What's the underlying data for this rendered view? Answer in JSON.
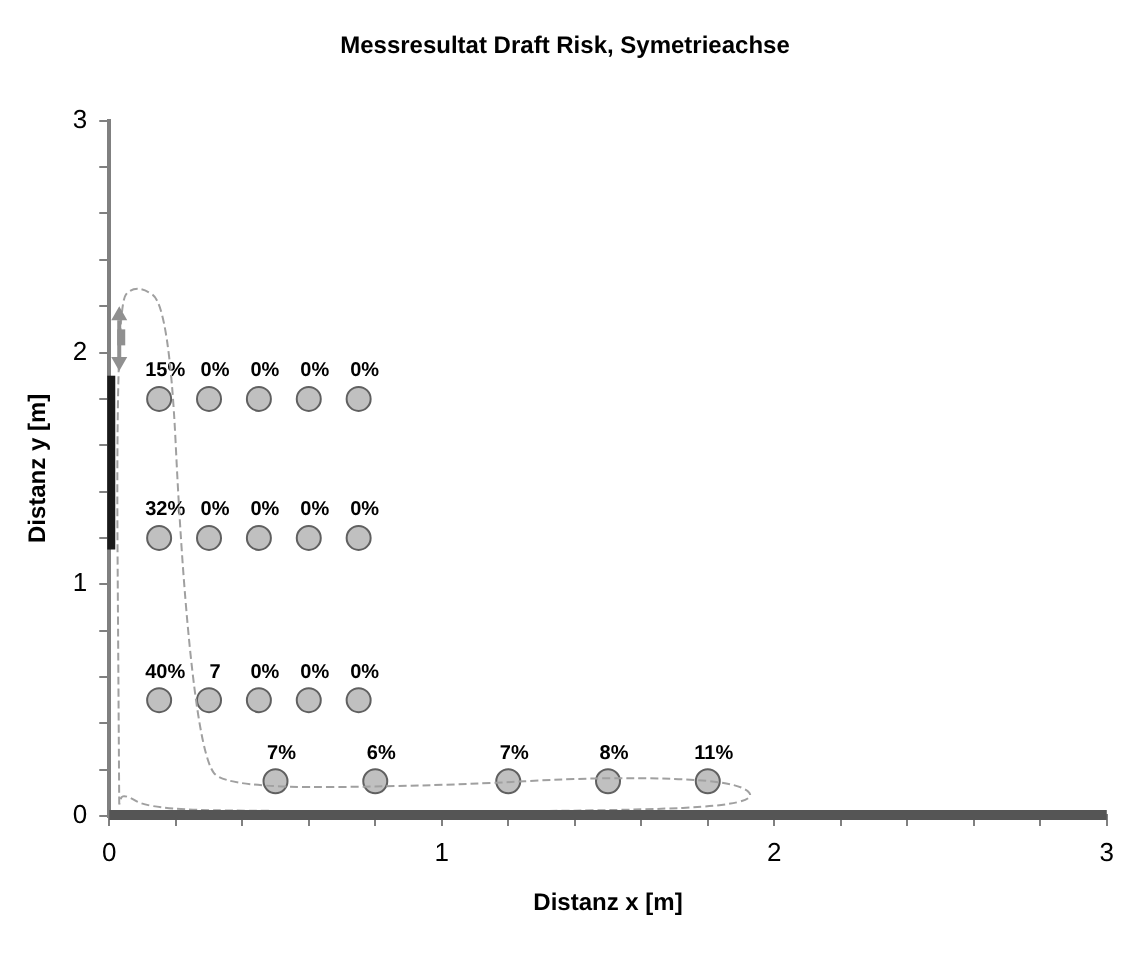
{
  "chart_data": {
    "type": "scatter",
    "title": "Messresultat Draft Risk, Symetrieachse",
    "xlabel": "Distanz x [m]",
    "ylabel": "Distanz y [m]",
    "series": [
      {
        "color": "#c0c0c0",
        "x": [
          0.15,
          0.3,
          0.45,
          0.6,
          0.75,
          0.15,
          0.3,
          0.45,
          0.6,
          0.75,
          0.15,
          0.3,
          0.45,
          0.6,
          0.75,
          0.5,
          0.8,
          1.2,
          1.5,
          1.8
        ],
        "values": [
          1.8,
          1.8,
          1.8,
          1.8,
          1.8,
          1.2,
          1.2,
          1.2,
          1.2,
          1.2,
          0.5,
          0.5,
          0.5,
          0.5,
          0.5,
          0.15,
          0.15,
          0.15,
          0.15,
          0.15
        ]
      }
    ],
    "annotations": [
      {
        "text": "15%",
        "x": 0.15,
        "y": 1.8
      },
      {
        "text": "0%",
        "x": 0.3,
        "y": 1.8
      },
      {
        "text": "0%",
        "x": 0.45,
        "y": 1.8
      },
      {
        "text": "0%",
        "x": 0.6,
        "y": 1.8
      },
      {
        "text": "0%",
        "x": 0.75,
        "y": 1.8
      },
      {
        "text": "32%",
        "x": 0.15,
        "y": 1.2
      },
      {
        "text": "0%",
        "x": 0.3,
        "y": 1.2
      },
      {
        "text": "0%",
        "x": 0.45,
        "y": 1.2
      },
      {
        "text": "0%",
        "x": 0.6,
        "y": 1.2
      },
      {
        "text": "0%",
        "x": 0.75,
        "y": 1.2
      },
      {
        "text": "40%",
        "x": 0.15,
        "y": 0.5
      },
      {
        "text": "7",
        "x": 0.3,
        "y": 0.5
      },
      {
        "text": "0%",
        "x": 0.45,
        "y": 0.5
      },
      {
        "text": "0%",
        "x": 0.6,
        "y": 0.5
      },
      {
        "text": "0%",
        "x": 0.75,
        "y": 0.5
      },
      {
        "text": "7%",
        "x": 0.5,
        "y": 0.15
      },
      {
        "text": "6%",
        "x": 0.8,
        "y": 0.15
      },
      {
        "text": "7%",
        "x": 1.2,
        "y": 0.15
      },
      {
        "text": "8%",
        "x": 1.5,
        "y": 0.15
      },
      {
        "text": "11%",
        "x": 1.8,
        "y": 0.15
      }
    ],
    "xlim": [
      0,
      3
    ],
    "ylim": [
      0,
      3
    ],
    "xticks": [
      0,
      {
        "value": 0.2,
        "label": null
      },
      {
        "value": 0.4,
        "label": null
      },
      {
        "value": 0.6,
        "label": null
      },
      {
        "value": 0.8,
        "label": null
      },
      1,
      {
        "value": 1.2,
        "label": null
      },
      {
        "value": 1.4,
        "label": null
      },
      {
        "value": 1.6,
        "label": null
      },
      {
        "value": 1.8,
        "label": null
      },
      2,
      {
        "value": 2.2,
        "label": null
      },
      {
        "value": 2.4,
        "label": null
      },
      {
        "value": 2.6,
        "label": null
      },
      {
        "value": 2.8,
        "label": null
      },
      3
    ],
    "yticks": [
      0,
      {
        "value": 0.2,
        "label": null
      },
      {
        "value": 0.4,
        "label": null
      },
      {
        "value": 0.6,
        "label": null
      },
      {
        "value": 0.8,
        "label": null
      },
      1,
      {
        "value": 1.2,
        "label": null
      },
      {
        "value": 1.4,
        "label": null
      },
      {
        "value": 1.6,
        "label": null
      },
      {
        "value": 1.8,
        "label": null
      },
      2,
      {
        "value": 2.2,
        "label": null
      },
      {
        "value": 2.4,
        "label": null
      },
      {
        "value": 2.6,
        "label": null
      },
      {
        "value": 2.8,
        "label": null
      },
      3
    ],
    "grid": false,
    "legend": false,
    "marker": "circle"
  }
}
